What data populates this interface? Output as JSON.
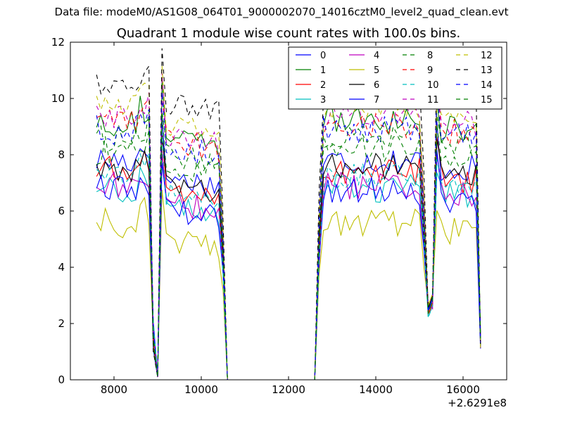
{
  "suptitle": "Data file: modeM0/AS1G08_064T01_9000002070_14016cztM0_level2_quad_clean.evt",
  "chart_data": {
    "type": "line",
    "title": "Quadrant 1 module wise count rates with 100.0s bins.",
    "xlabel": "",
    "ylabel": "",
    "xlim": [
      7000,
      17000
    ],
    "ylim": [
      0,
      12
    ],
    "x_offset_label": "+2.6291e8",
    "x_ticks": [
      8000,
      10000,
      12000,
      14000,
      16000
    ],
    "x_tick_labels": [
      "8000",
      "10000",
      "12000",
      "14000",
      "16000"
    ],
    "y_ticks": [
      0,
      2,
      4,
      6,
      8,
      10,
      12
    ],
    "y_tick_labels": [
      "0",
      "2",
      "4",
      "6",
      "8",
      "10",
      "12"
    ],
    "grid": false,
    "legend": {
      "position": "top-right",
      "columns": 4
    },
    "segments": [
      {
        "x_start": 7600,
        "x_end": 8800,
        "levels_at": "start"
      },
      {
        "x_start": 8900,
        "x_end": 9000,
        "values": "dip"
      },
      {
        "x_start": 9100,
        "x_end": 10500
      },
      {
        "x_start": 10600,
        "x_end": 12600,
        "value": 0
      },
      {
        "x_start": 12700,
        "x_end": 15100
      },
      {
        "x_start": 15200,
        "x_end": 15300,
        "values": "dip"
      },
      {
        "x_start": 15400,
        "x_end": 16400
      }
    ],
    "series": [
      {
        "name": "0",
        "color": "#0000ff",
        "dash": "solid",
        "level": 7.8
      },
      {
        "name": "1",
        "color": "#008000",
        "dash": "solid",
        "level": 9.2
      },
      {
        "name": "2",
        "color": "#ff0000",
        "dash": "solid",
        "level": 7.4
      },
      {
        "name": "3",
        "color": "#00bfbf",
        "dash": "solid",
        "level": 6.8
      },
      {
        "name": "4",
        "color": "#bf00bf",
        "dash": "solid",
        "level": 6.9
      },
      {
        "name": "5",
        "color": "#bfbf00",
        "dash": "solid",
        "level": 5.6
      },
      {
        "name": "6",
        "color": "#000000",
        "dash": "solid",
        "level": 7.6
      },
      {
        "name": "7",
        "color": "#0000ff",
        "dash": "solid",
        "level": 6.7
      },
      {
        "name": "8",
        "color": "#008000",
        "dash": "dashed",
        "level": 8.6
      },
      {
        "name": "9",
        "color": "#ff0000",
        "dash": "dashed",
        "level": 9.1
      },
      {
        "name": "10",
        "color": "#00bfbf",
        "dash": "dashed",
        "level": 7.2
      },
      {
        "name": "11",
        "color": "#bf00bf",
        "dash": "dashed",
        "level": 9.4
      },
      {
        "name": "12",
        "color": "#bfbf00",
        "dash": "dashed",
        "level": 9.7
      },
      {
        "name": "13",
        "color": "#000000",
        "dash": "dashed",
        "level": 10.4
      },
      {
        "name": "14",
        "color": "#0000ff",
        "dash": "dashed",
        "level": 8.9
      },
      {
        "name": "15",
        "color": "#008000",
        "dash": "dashed",
        "level": 8.2
      }
    ]
  }
}
